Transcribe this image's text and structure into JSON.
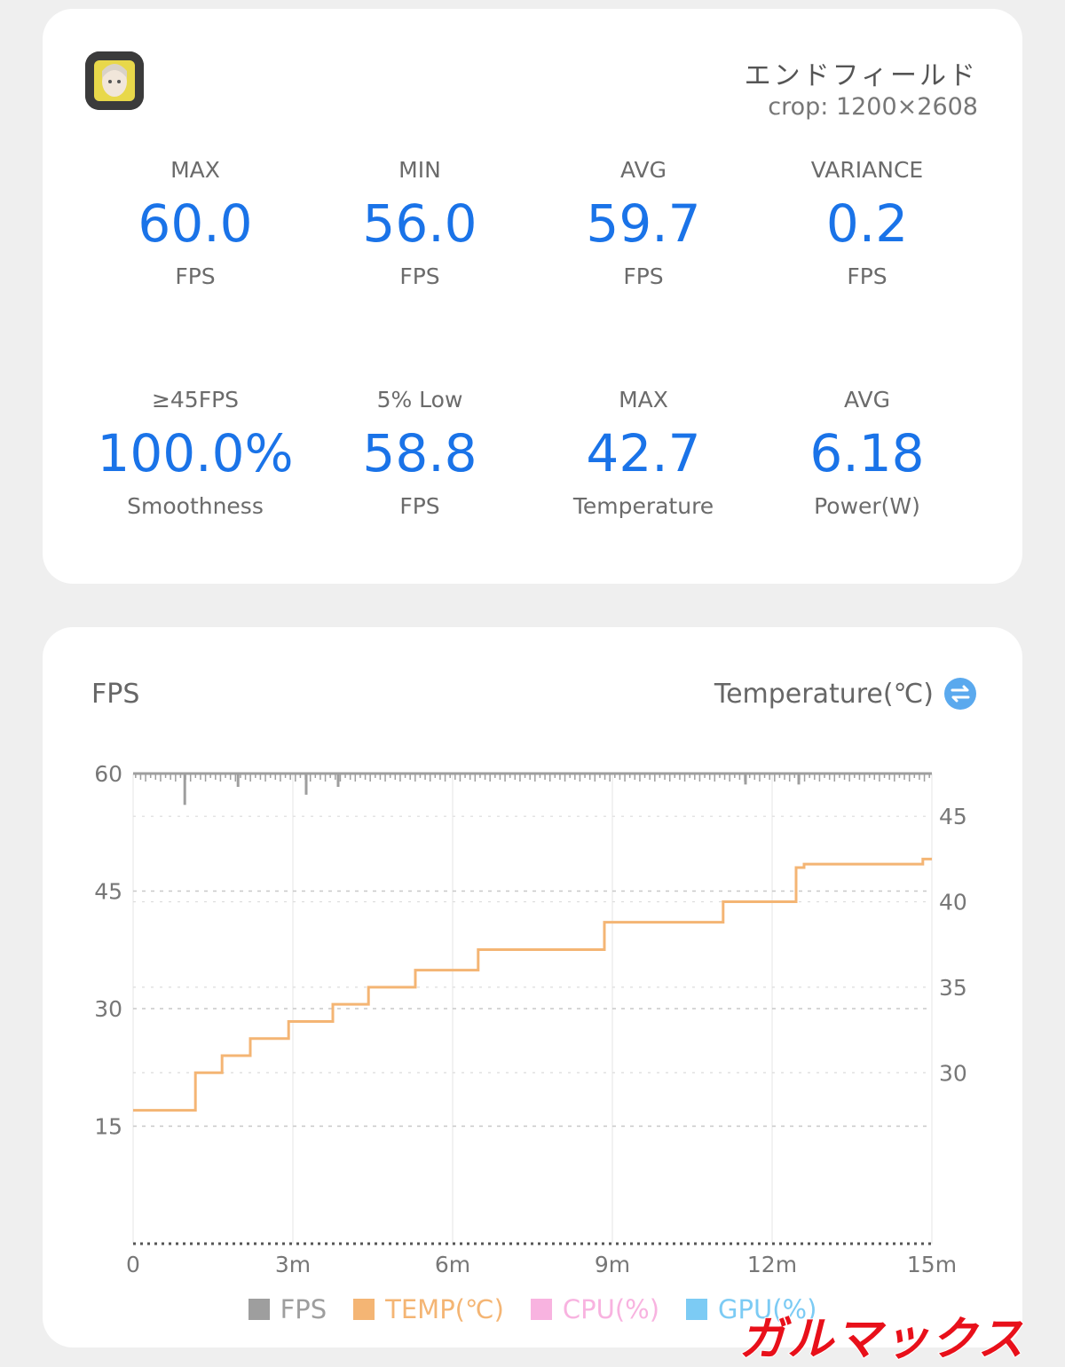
{
  "header": {
    "app_name": "エンドフィールド",
    "crop": "crop: 1200×2608"
  },
  "stats": [
    {
      "label": "MAX",
      "value": "60.0",
      "unit": "FPS"
    },
    {
      "label": "MIN",
      "value": "56.0",
      "unit": "FPS"
    },
    {
      "label": "AVG",
      "value": "59.7",
      "unit": "FPS"
    },
    {
      "label": "VARIANCE",
      "value": "0.2",
      "unit": "FPS"
    },
    {
      "label": "≥45FPS",
      "value": "100.0%",
      "unit": "Smoothness"
    },
    {
      "label": "5% Low",
      "value": "58.8",
      "unit": "FPS"
    },
    {
      "label": "MAX",
      "value": "42.7",
      "unit": "Temperature"
    },
    {
      "label": "AVG",
      "value": "6.18",
      "unit": "Power(W)"
    }
  ],
  "chart": {
    "left_title": "FPS",
    "right_title": "Temperature(℃)",
    "swap_icon": "swap-arrows-icon",
    "watermark": "ガルマックス"
  },
  "chart_data": {
    "type": "line",
    "x_ticks": [
      "0",
      "3m",
      "6m",
      "9m",
      "12m",
      "15m"
    ],
    "x_range_min": [
      0,
      15
    ],
    "y_left": {
      "ticks": [
        "60",
        "45",
        "30",
        "15"
      ],
      "range": [
        0,
        60
      ]
    },
    "y_right": {
      "ticks": [
        "45",
        "40",
        "35",
        "30"
      ],
      "range": [
        20,
        47.5
      ]
    },
    "series": [
      {
        "name": "FPS",
        "color": "#9e9e9e",
        "baseline": 60,
        "dips": [
          [
            0.97,
            56
          ],
          [
            1.97,
            58.3
          ],
          [
            3.25,
            57.3
          ],
          [
            3.85,
            58.3
          ],
          [
            11.5,
            58.6
          ],
          [
            12.5,
            58.6
          ]
        ]
      },
      {
        "name": "TEMP(℃)",
        "color": "#f4b574",
        "steps": [
          [
            0,
            27.8
          ],
          [
            1.17,
            30.0
          ],
          [
            1.67,
            31.0
          ],
          [
            2.2,
            32.0
          ],
          [
            2.92,
            33.0
          ],
          [
            3.75,
            34.0
          ],
          [
            4.42,
            35.0
          ],
          [
            5.3,
            36.0
          ],
          [
            6.48,
            37.2
          ],
          [
            8.85,
            38.8
          ],
          [
            11.08,
            40.0
          ],
          [
            12.45,
            42.0
          ],
          [
            12.6,
            42.2
          ],
          [
            14.83,
            42.5
          ]
        ]
      },
      {
        "name": "CPU(%)",
        "color": "#f8b3e0"
      },
      {
        "name": "GPU(%)",
        "color": "#7ccbf4"
      }
    ]
  }
}
